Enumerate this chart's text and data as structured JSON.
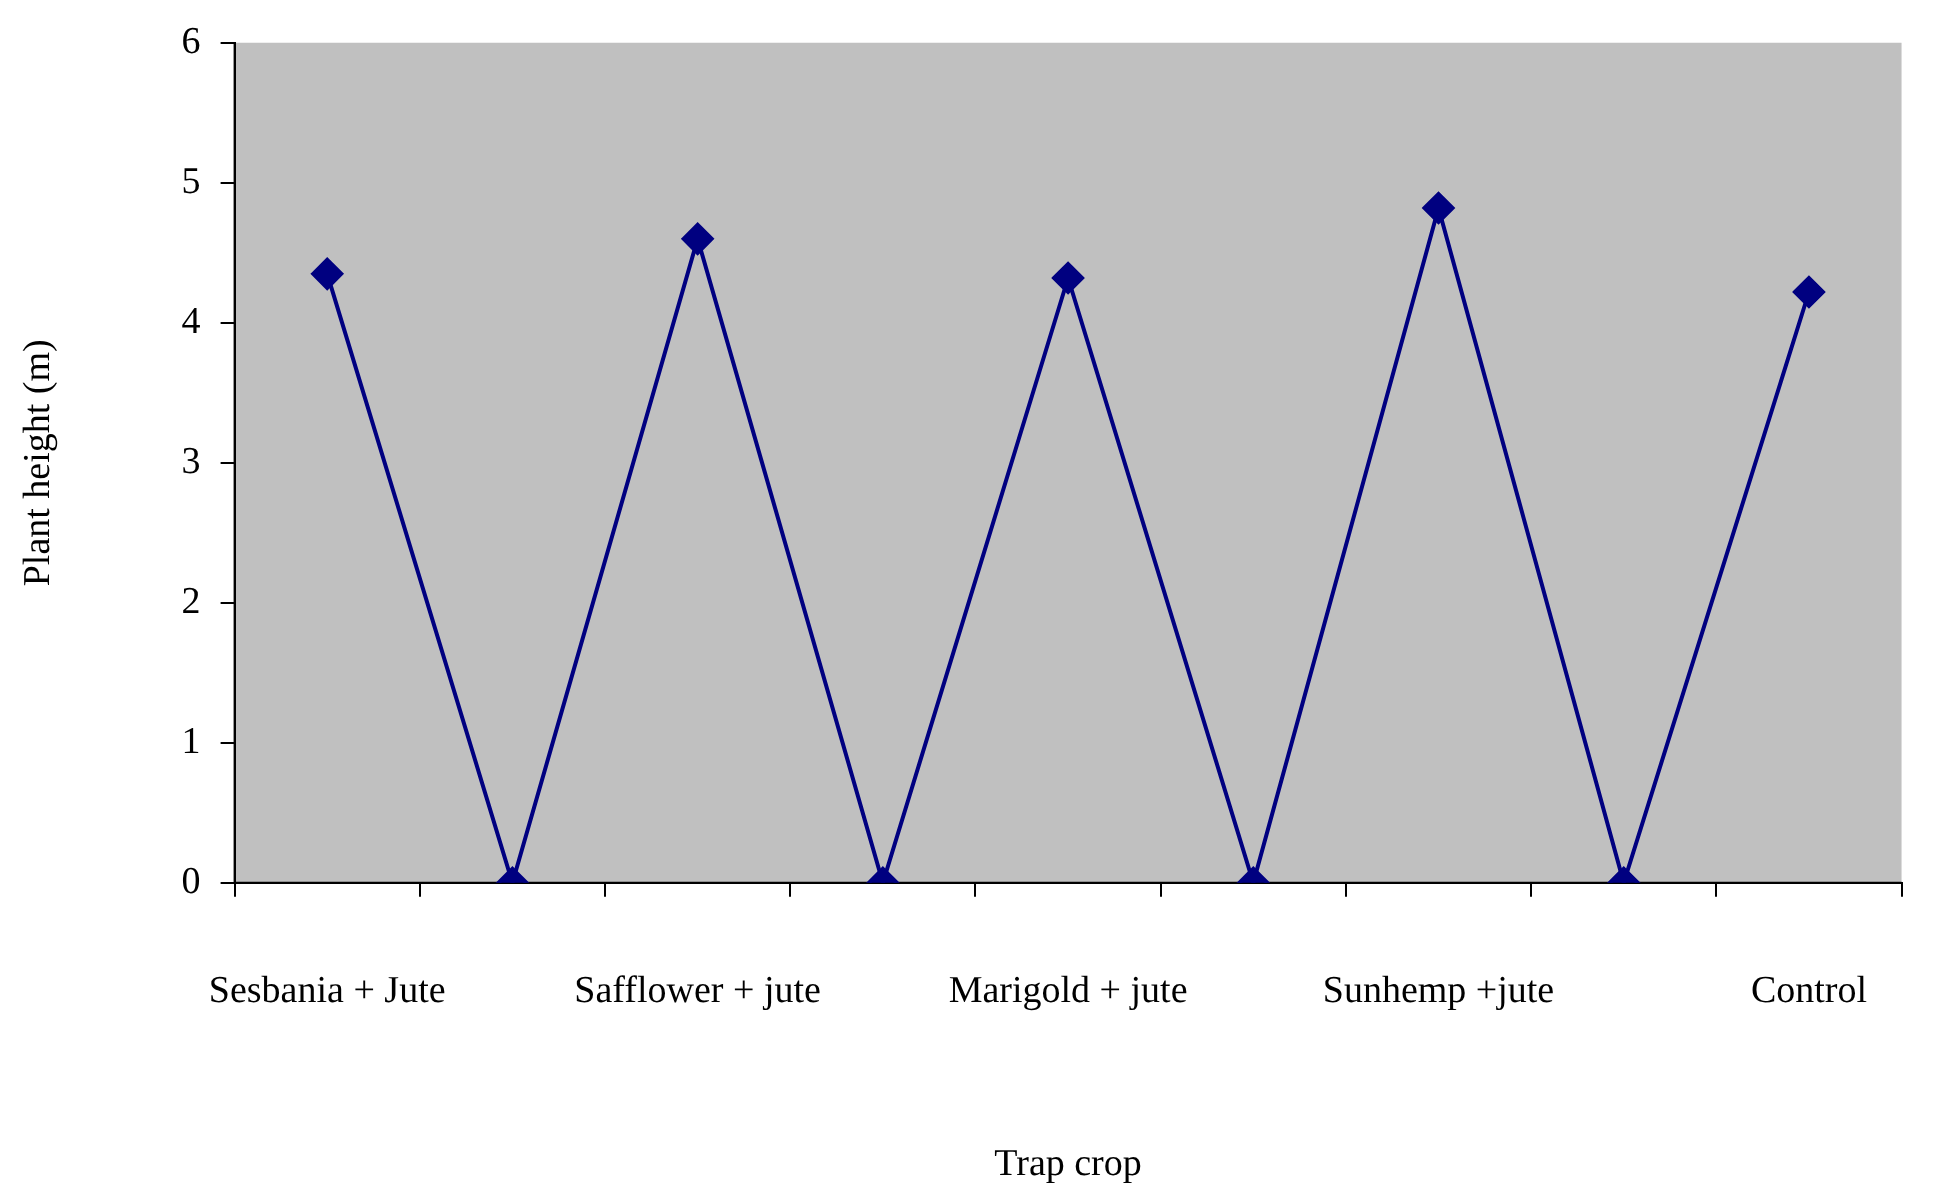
{
  "chart_data": {
    "type": "line",
    "xlabel": "Trap crop",
    "ylabel": "Plant height (m)",
    "categories": [
      "Sesbania + Jute",
      null,
      "Safflower + jute",
      null,
      "Marigold + jute",
      null,
      "Sunhemp +jute",
      null,
      "Control"
    ],
    "series": [
      {
        "color": "#000080",
        "values": [
          4.35,
          0,
          4.6,
          0,
          4.32,
          0,
          4.82,
          0,
          4.22
        ]
      }
    ],
    "ylim": [
      0,
      6
    ],
    "yticks": [
      0,
      1,
      2,
      3,
      4,
      5,
      6
    ],
    "grid": false,
    "legend": false,
    "marker": "diamond",
    "line_style": "solid"
  }
}
